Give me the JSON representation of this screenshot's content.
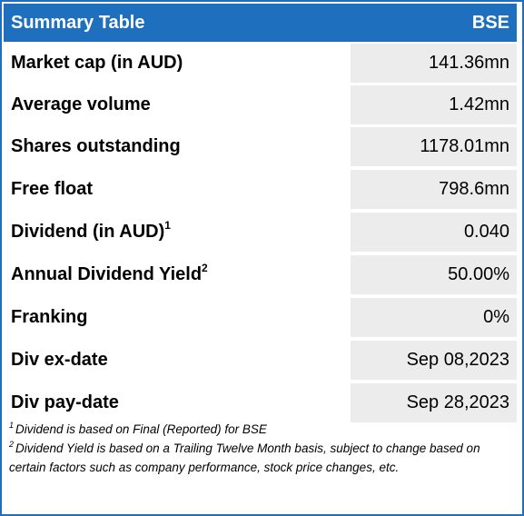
{
  "table": {
    "title": "Summary Table",
    "exchange": "BSE",
    "rows": [
      {
        "label": "Market cap (in AUD)",
        "sup": "",
        "value": "141.36mn"
      },
      {
        "label": "Average volume",
        "sup": "",
        "value": "1.42mn"
      },
      {
        "label": "Shares outstanding",
        "sup": "",
        "value": "1178.01mn"
      },
      {
        "label": "Free float",
        "sup": "",
        "value": "798.6mn"
      },
      {
        "label": "Dividend (in AUD)",
        "sup": "1",
        "value": "0.040"
      },
      {
        "label": "Annual Dividend Yield",
        "sup": "2",
        "value": "50.00%"
      },
      {
        "label": "Franking",
        "sup": "",
        "value": "0%"
      },
      {
        "label": "Div ex-date",
        "sup": "",
        "value": "Sep 08,2023"
      },
      {
        "label": "Div pay-date",
        "sup": "",
        "value": "Sep 28,2023"
      }
    ]
  },
  "footnotes": [
    {
      "mark": "1",
      "text": "Dividend is based on Final (Reported) for BSE"
    },
    {
      "mark": "2",
      "text": "Dividend Yield is based on a Trailing Twelve Month basis, subject to change based on certain factors such as company performance, stock price changes, etc."
    }
  ],
  "colors": {
    "header_bg": "#1f6fbf",
    "value_bg": "#ececec",
    "border": "#1f6fbf"
  }
}
